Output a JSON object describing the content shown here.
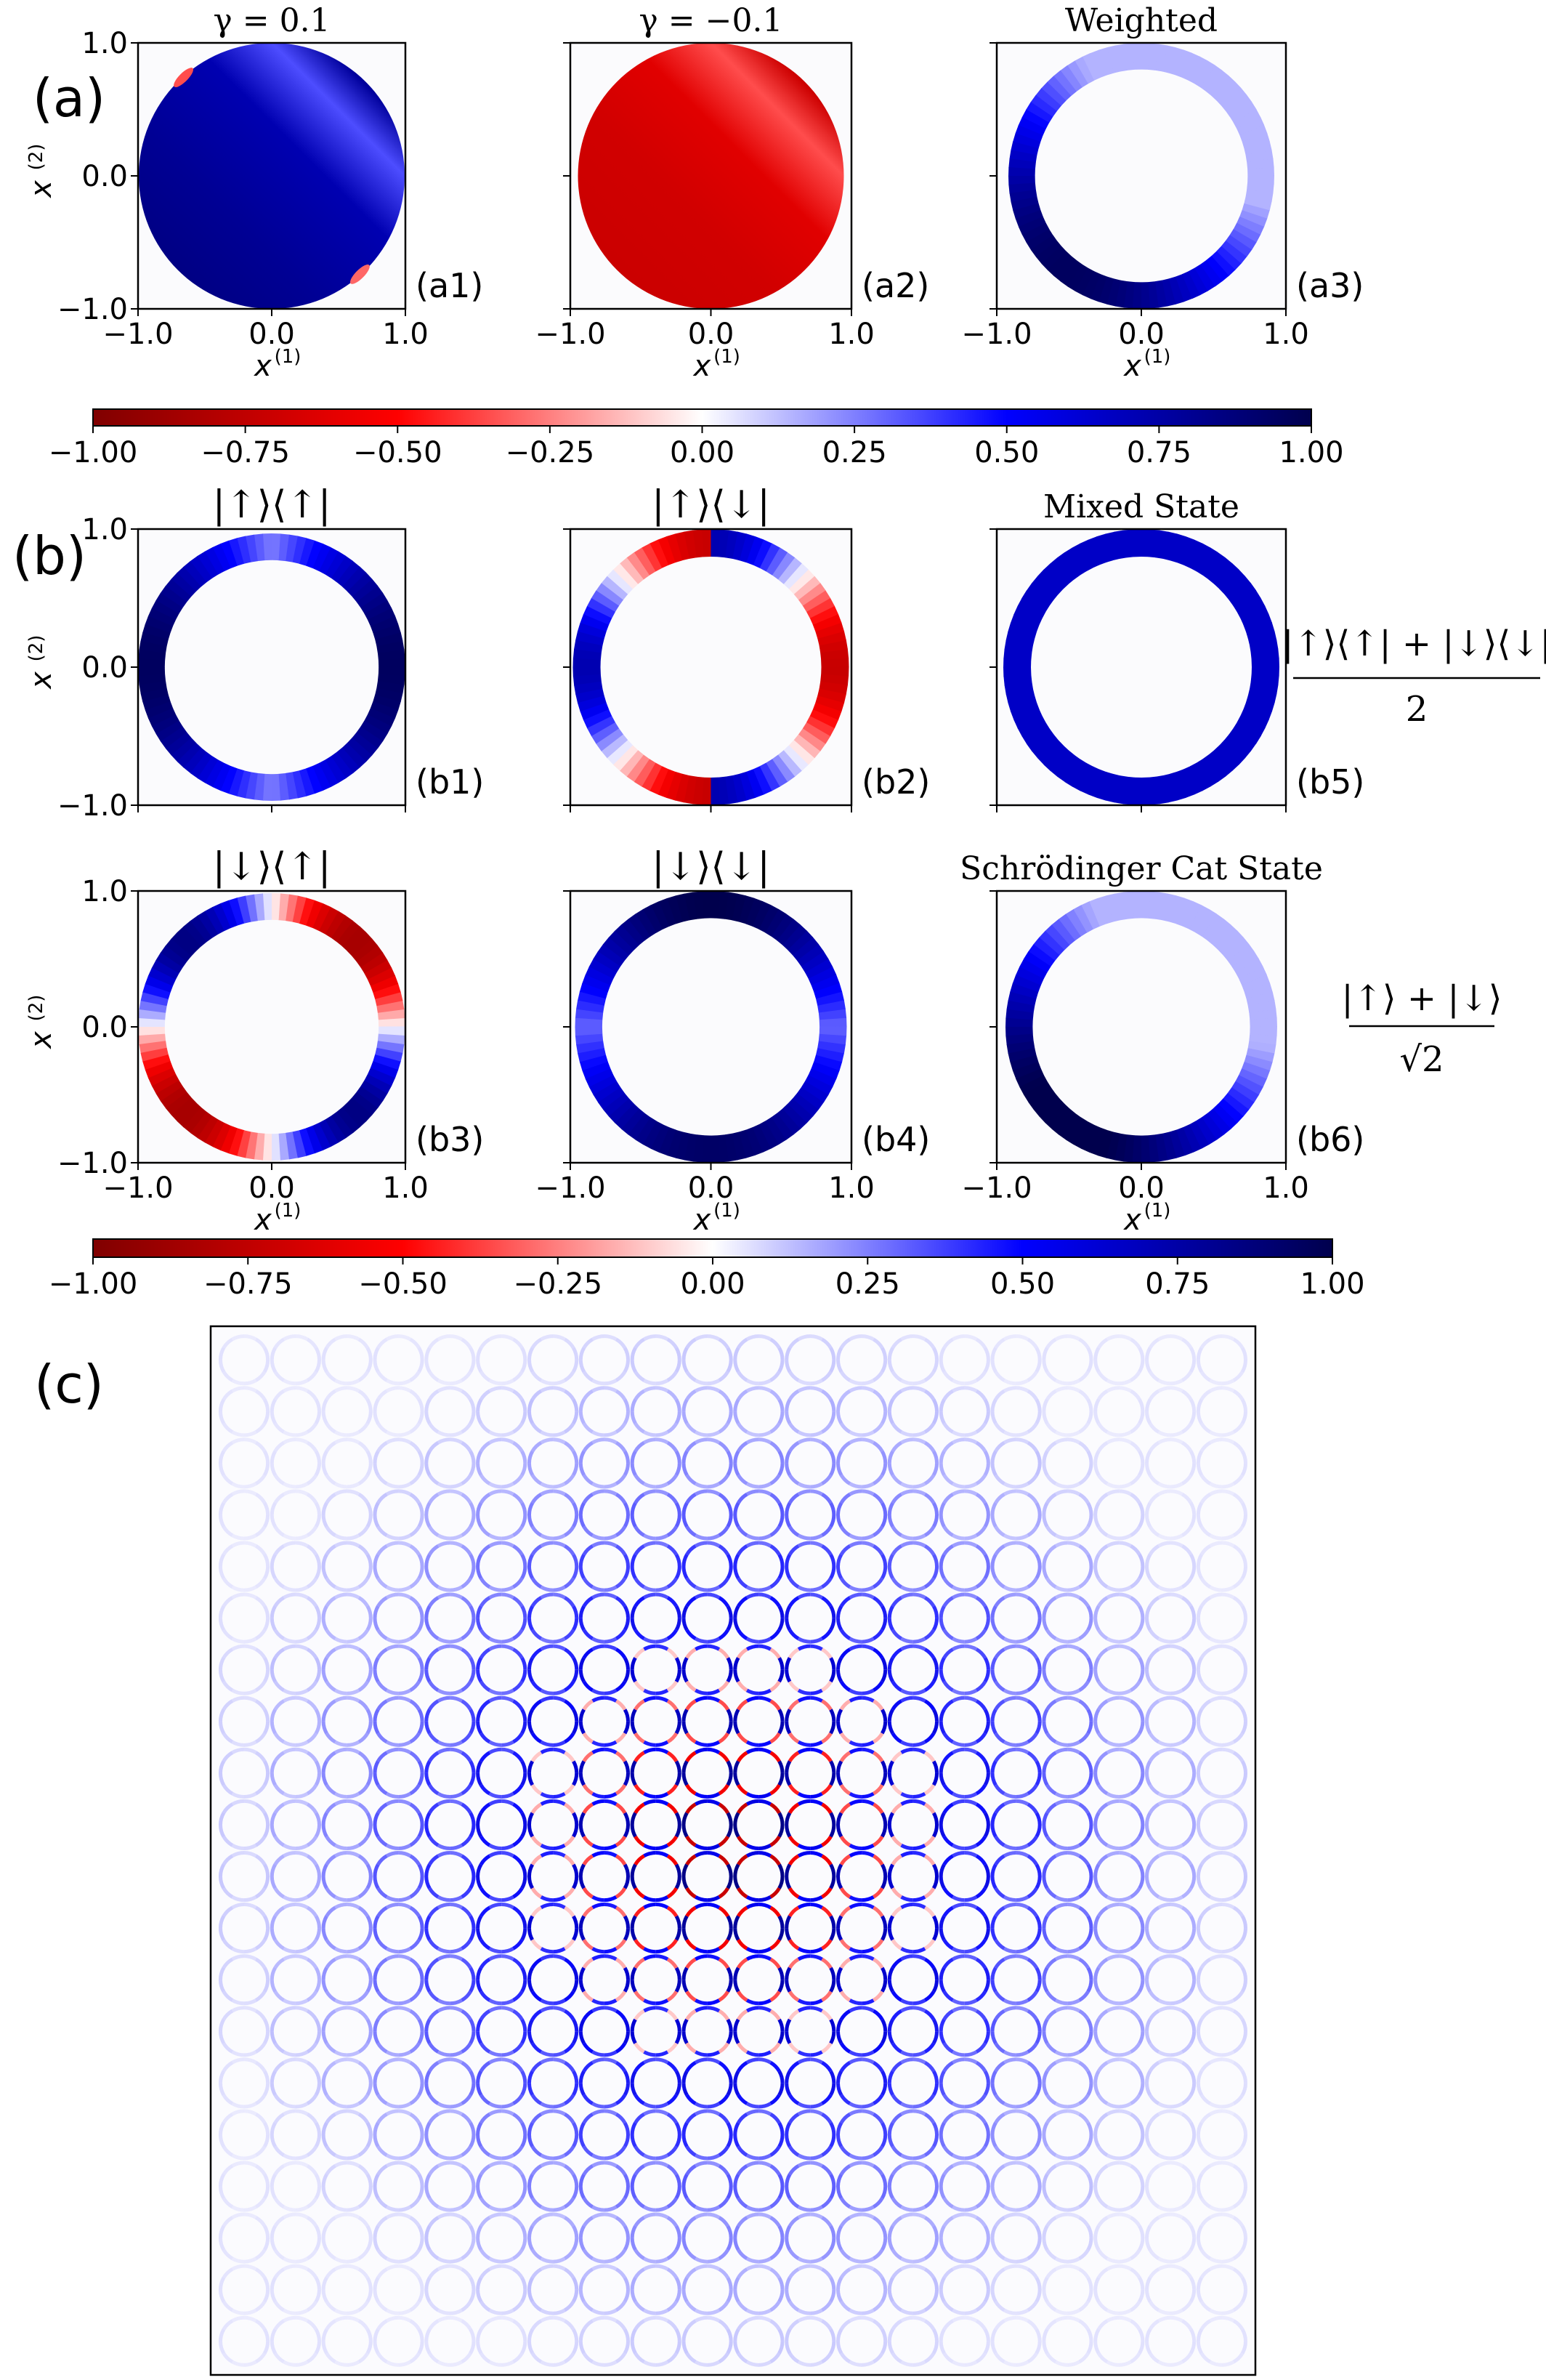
{
  "chart_data": {
    "type": "heatmap",
    "colormap": "seismic_r",
    "colorbar_ticks": [
      "−1.00",
      "−0.75",
      "−0.50",
      "−0.25",
      "0.00",
      "0.25",
      "0.50",
      "0.75",
      "1.00"
    ],
    "colorbar_range": [
      -1.0,
      1.0
    ],
    "axes": {
      "xlabel": "x",
      "xlabel_sup": "(1)",
      "ylabel": "x",
      "ylabel_sup": "(2)",
      "xlim": [
        -1.0,
        1.0
      ],
      "ylim": [
        -1.0,
        1.0
      ],
      "ticks": [
        "−1.0",
        "0.0",
        "1.0"
      ]
    },
    "sections": [
      {
        "label": "(a)"
      },
      {
        "label": "(b)"
      },
      {
        "label": "(c)"
      }
    ],
    "panels": [
      {
        "id": "a1",
        "tag": "(a1)",
        "title": "γ = 0.1",
        "kind": "disk_pos",
        "ring_inner": 0.0
      },
      {
        "id": "a2",
        "tag": "(a2)",
        "title": "γ = −0.1",
        "kind": "disk_neg",
        "ring_inner": 0.0
      },
      {
        "id": "a3",
        "tag": "(a3)",
        "title": "Weighted",
        "kind": "ring_weighted",
        "ring_inner": 0.8
      },
      {
        "id": "b1",
        "tag": "(b1)",
        "title": "|↑⟩⟨↑|",
        "kind": "ring_updown",
        "ring_inner": 0.8
      },
      {
        "id": "b2",
        "tag": "(b2)",
        "title": "|↑⟩⟨↓|",
        "kind": "ring_coh",
        "ring_inner": 0.8
      },
      {
        "id": "b5",
        "tag": "(b5)",
        "title": "Mixed State",
        "kind": "ring_flat",
        "ring_inner": 0.8
      },
      {
        "id": "b3",
        "tag": "(b3)",
        "title": "|↓⟩⟨↑|",
        "kind": "ring_coh2",
        "ring_inner": 0.8
      },
      {
        "id": "b4",
        "tag": "(b4)",
        "title": "|↓⟩⟨↓|",
        "kind": "ring_downdown",
        "ring_inner": 0.8
      },
      {
        "id": "b6",
        "tag": "(b6)",
        "title": "Schrödinger Cat State",
        "kind": "ring_cat",
        "ring_inner": 0.8
      }
    ],
    "formulas": {
      "mixed_numerator": "|↑⟩⟨↑| + |↓⟩⟨↓|",
      "mixed_denominator": "2",
      "cat_numerator": "|↑⟩ + |↓⟩",
      "cat_denominator": "√2"
    },
    "lattice": {
      "rows": 20,
      "cols": 20,
      "panel": "(c)"
    }
  }
}
